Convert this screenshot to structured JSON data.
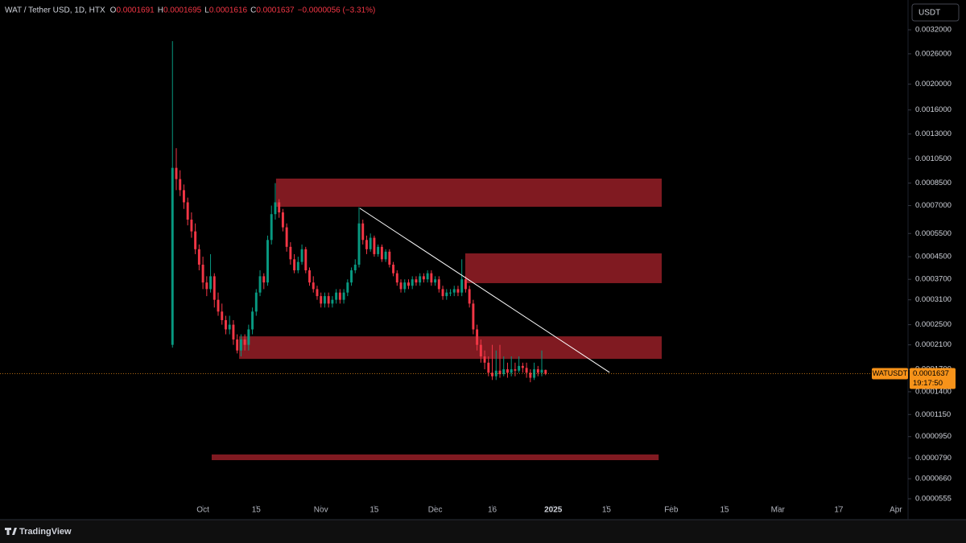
{
  "chart_data": {
    "type": "candlestick",
    "title": "WAT / Tether USD, 1D, HTX",
    "ohlc_header": [
      {
        "label": "O",
        "text": "0.0001691"
      },
      {
        "label": "H",
        "text": "0.0001695"
      },
      {
        "label": "L",
        "text": "0.0001616"
      },
      {
        "label": "C",
        "text": "0.0001637"
      }
    ],
    "change_text": "−0.0000056 (−3.31%)",
    "currency_button": "USDT",
    "log_scale": true,
    "grid": false,
    "up_color": "#089981",
    "down_color": "#f23645",
    "xlim": [
      -52.3,
      186.2
    ],
    "ylim": [
      5.25e-05,
      0.00414
    ],
    "xticks": [
      {
        "value": 1,
        "label": "Oct"
      },
      {
        "value": 15,
        "label": "15"
      },
      {
        "value": 32,
        "label": "Nov"
      },
      {
        "value": 46,
        "label": "15"
      },
      {
        "value": 62,
        "label": "Dec"
      },
      {
        "value": 77,
        "label": "16"
      },
      {
        "value": 93,
        "label": "2025"
      },
      {
        "value": 107,
        "label": "15"
      },
      {
        "value": 124,
        "label": "Feb"
      },
      {
        "value": 138,
        "label": "15"
      },
      {
        "value": 152,
        "label": "Mar"
      },
      {
        "value": 168,
        "label": "17"
      },
      {
        "value": 183,
        "label": "Apr"
      }
    ],
    "yticks": [
      {
        "value": 0.0032,
        "label": "0.0032000"
      },
      {
        "value": 0.0026,
        "label": "0.0026000"
      },
      {
        "value": 0.002,
        "label": "0.0020000"
      },
      {
        "value": 0.0016,
        "label": "0.0016000"
      },
      {
        "value": 0.0013,
        "label": "0.0013000"
      },
      {
        "value": 0.00105,
        "label": "0.0010500"
      },
      {
        "value": 0.00085,
        "label": "0.0008500"
      },
      {
        "value": 0.0007,
        "label": "0.0007000"
      },
      {
        "value": 0.00055,
        "label": "0.0005500"
      },
      {
        "value": 0.00045,
        "label": "0.0004500"
      },
      {
        "value": 0.00037,
        "label": "0.0003700"
      },
      {
        "value": 0.00031,
        "label": "0.0003100"
      },
      {
        "value": 0.00025,
        "label": "0.0002500"
      },
      {
        "value": 0.00021,
        "label": "0.0002100"
      },
      {
        "value": 0.00017,
        "label": "0.0001700"
      },
      {
        "value": 0.00014,
        "label": "0.0001400"
      },
      {
        "value": 0.000115,
        "label": "0.0001150"
      },
      {
        "value": 9.5e-05,
        "label": "0.0000950"
      },
      {
        "value": 7.9e-05,
        "label": "0.0000790"
      },
      {
        "value": 6.6e-05,
        "label": "0.0000660"
      },
      {
        "value": 5.55e-05,
        "label": "0.0000555"
      }
    ],
    "x": [
      -7,
      -6,
      -5,
      -4,
      -3,
      -2,
      -1,
      0,
      1,
      2,
      3,
      4,
      5,
      6,
      7,
      8,
      9,
      10,
      11,
      12,
      13,
      14,
      15,
      16,
      17,
      18,
      19,
      20,
      21,
      22,
      23,
      24,
      25,
      26,
      27,
      28,
      29,
      30,
      31,
      32,
      33,
      34,
      35,
      36,
      37,
      38,
      39,
      40,
      41,
      42,
      43,
      44,
      45,
      46,
      47,
      48,
      49,
      50,
      51,
      52,
      53,
      54,
      55,
      56,
      57,
      58,
      59,
      60,
      61,
      62,
      63,
      64,
      65,
      66,
      67,
      68,
      69,
      70,
      71,
      72,
      73,
      74,
      75,
      76,
      77,
      78,
      79,
      80,
      81,
      82,
      83,
      84,
      85,
      86,
      87,
      88,
      89,
      90,
      91
    ],
    "open": [
      0.00021,
      0.00097,
      0.00088,
      0.0008,
      0.00072,
      0.00062,
      0.00056,
      0.00048,
      0.00042,
      0.00036,
      0.00034,
      0.00038,
      0.00031,
      0.00028,
      0.00026,
      0.00024,
      0.00025,
      0.00022,
      0.0002,
      0.00022,
      0.00021,
      0.00024,
      0.00028,
      0.00033,
      0.00038,
      0.00036,
      0.00052,
      0.00065,
      0.00072,
      0.00066,
      0.00058,
      0.00049,
      0.00044,
      0.0004,
      0.00043,
      0.00048,
      0.0004,
      0.00036,
      0.00034,
      0.00032,
      0.0003,
      0.00032,
      0.0003,
      0.00031,
      0.00033,
      0.00031,
      0.00033,
      0.00036,
      0.0004,
      0.00042,
      0.0006,
      0.00052,
      0.00048,
      0.00053,
      0.00046,
      0.00049,
      0.00044,
      0.00047,
      0.00042,
      0.00039,
      0.00036,
      0.00034,
      0.00036,
      0.00035,
      0.00037,
      0.00036,
      0.00038,
      0.00037,
      0.00039,
      0.00036,
      0.00037,
      0.00034,
      0.00032,
      0.00033,
      0.00033,
      0.00034,
      0.00033,
      0.00037,
      0.00034,
      0.0003,
      0.00024,
      0.00021,
      0.00019,
      0.00018,
      0.000165,
      0.00016,
      0.000168,
      0.000163,
      0.00017,
      0.000165,
      0.00017,
      0.000168,
      0.000175,
      0.000172,
      0.000165,
      0.000158,
      0.00017,
      0.000165,
      0.0001691
    ],
    "high": [
      0.0029,
      0.00115,
      0.00095,
      0.00084,
      0.00075,
      0.00066,
      0.0006,
      0.0005,
      0.00045,
      0.00038,
      0.00046,
      0.00039,
      0.00033,
      0.0003,
      0.00027,
      0.00027,
      0.00026,
      0.00023,
      0.00023,
      0.00023,
      0.00025,
      0.00029,
      0.00034,
      0.0004,
      0.00039,
      0.00054,
      0.0007,
      0.00085,
      0.00074,
      0.00068,
      0.0006,
      0.00051,
      0.00046,
      0.00045,
      0.0005,
      0.00049,
      0.00041,
      0.00038,
      0.00035,
      0.00033,
      0.00033,
      0.00033,
      0.00032,
      0.00034,
      0.00034,
      0.00034,
      0.00037,
      0.00041,
      0.00044,
      0.00069,
      0.00062,
      0.00054,
      0.00055,
      0.00054,
      0.0005,
      0.0005,
      0.00048,
      0.00048,
      0.00043,
      0.0004,
      0.00037,
      0.00037,
      0.00037,
      0.00038,
      0.00038,
      0.00039,
      0.00039,
      0.0004,
      0.0004,
      0.00038,
      0.00038,
      0.00035,
      0.00034,
      0.00034,
      0.00035,
      0.00035,
      0.00044,
      0.00038,
      0.00035,
      0.00031,
      0.00025,
      0.00022,
      0.0002,
      0.00019,
      0.00021,
      0.0002,
      0.00021,
      0.00019,
      0.00018,
      0.00019,
      0.00018,
      0.00019,
      0.00018,
      0.00018,
      0.00017,
      0.00018,
      0.000175,
      0.0002,
      0.0001695
    ],
    "low": [
      0.000205,
      0.0008,
      0.00076,
      0.00068,
      0.00059,
      0.00053,
      0.00046,
      0.0004,
      0.00034,
      0.00032,
      0.00033,
      0.00029,
      0.00027,
      0.00025,
      0.00023,
      0.00023,
      0.00021,
      0.000195,
      0.00019,
      0.0002,
      0.0002,
      0.00023,
      0.00027,
      0.00032,
      0.00034,
      0.00035,
      0.0005,
      0.00062,
      0.00063,
      0.00056,
      0.00047,
      0.00042,
      0.00039,
      0.00039,
      0.00042,
      0.00039,
      0.00035,
      0.00033,
      0.00031,
      0.00029,
      0.00029,
      0.00029,
      0.00029,
      0.0003,
      0.0003,
      0.0003,
      0.00032,
      0.00035,
      0.00039,
      0.00041,
      0.0005,
      0.00046,
      0.00047,
      0.00045,
      0.00045,
      0.00043,
      0.00043,
      0.00041,
      0.00038,
      0.00035,
      0.00033,
      0.00033,
      0.00034,
      0.00034,
      0.00035,
      0.00035,
      0.00036,
      0.00036,
      0.00035,
      0.00035,
      0.00033,
      0.00031,
      0.00031,
      0.00032,
      0.00032,
      0.00032,
      0.00032,
      0.00033,
      0.00029,
      0.00023,
      0.0002,
      0.00018,
      0.00017,
      0.00016,
      0.000155,
      0.000155,
      0.000158,
      0.00016,
      0.000158,
      0.00016,
      0.00016,
      0.000165,
      0.000165,
      0.000158,
      0.000152,
      0.000155,
      0.00016,
      0.00016,
      0.0001616
    ],
    "close": [
      0.00097,
      0.00088,
      0.0008,
      0.00072,
      0.00062,
      0.00056,
      0.00048,
      0.00042,
      0.00036,
      0.00034,
      0.00038,
      0.00031,
      0.00028,
      0.00026,
      0.00024,
      0.00025,
      0.00022,
      0.0002,
      0.00022,
      0.00021,
      0.00024,
      0.00028,
      0.00033,
      0.00038,
      0.00036,
      0.00052,
      0.00065,
      0.00072,
      0.00066,
      0.00058,
      0.00049,
      0.00044,
      0.0004,
      0.00043,
      0.00048,
      0.0004,
      0.00036,
      0.00034,
      0.00032,
      0.0003,
      0.00032,
      0.0003,
      0.00031,
      0.00033,
      0.00031,
      0.00033,
      0.00036,
      0.0004,
      0.00042,
      0.0006,
      0.00052,
      0.00048,
      0.00053,
      0.00046,
      0.00049,
      0.00044,
      0.00047,
      0.00042,
      0.00039,
      0.00036,
      0.00034,
      0.00036,
      0.00035,
      0.00037,
      0.00036,
      0.00038,
      0.00037,
      0.00039,
      0.00036,
      0.00037,
      0.00034,
      0.00032,
      0.00033,
      0.00033,
      0.00034,
      0.00033,
      0.00037,
      0.00034,
      0.0003,
      0.00024,
      0.00021,
      0.00019,
      0.00018,
      0.000165,
      0.00016,
      0.000168,
      0.000163,
      0.00017,
      0.000165,
      0.00017,
      0.000168,
      0.000175,
      0.000172,
      0.000165,
      0.000158,
      0.00017,
      0.000165,
      0.0001693,
      0.0001637
    ],
    "zone_color": "#8b1c24",
    "zones": [
      {
        "x": [
          20.2,
          121.5
        ],
        "y": [
          0.000693,
          0.000884
        ]
      },
      {
        "x": [
          69.9,
          121.5
        ],
        "y": [
          0.000358,
          0.000463
        ]
      },
      {
        "x": [
          10.5,
          121.5
        ],
        "y": [
          0.000186,
          0.000226
        ]
      },
      {
        "x": [
          3.3,
          120.7
        ],
        "y": [
          7.75e-05,
          8.14e-05
        ]
      }
    ],
    "trend_line": {
      "x": [
        42.2,
        107.8
      ],
      "y": [
        0.000684,
        0.0001655
      ]
    },
    "last_price": {
      "symbol": "WATUSDT",
      "value": 0.0001637,
      "countdown": "19:17:50",
      "color": "#f7931a"
    },
    "brand": "TradingView"
  }
}
